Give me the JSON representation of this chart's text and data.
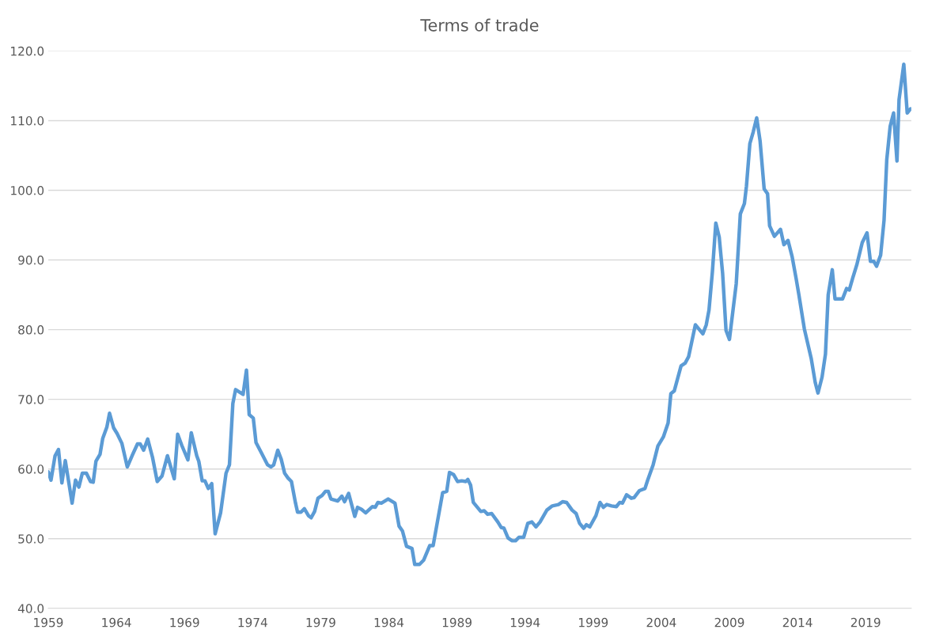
{
  "chart_data": {
    "type": "line",
    "title": "Terms of trade",
    "xlim": [
      1959,
      2022.35
    ],
    "xticks": [
      1959,
      1964,
      1969,
      1974,
      1979,
      1984,
      1989,
      1994,
      1999,
      2004,
      2009,
      2014,
      2019
    ],
    "ylim": [
      40,
      120
    ],
    "yticks": [
      {
        "value": 40,
        "label": "40.0"
      },
      {
        "value": 50,
        "label": "50.0"
      },
      {
        "value": 60,
        "label": "60.0"
      },
      {
        "value": 70,
        "label": "70.0"
      },
      {
        "value": 80,
        "label": "80.0"
      },
      {
        "value": 90,
        "label": "90.0"
      },
      {
        "value": 100,
        "label": "100.0"
      },
      {
        "value": 110,
        "label": "110.0"
      },
      {
        "value": 120,
        "label": "120.0"
      }
    ],
    "grid": "y",
    "legend": false,
    "marker": "none",
    "line_style": "solid",
    "series": [
      {
        "color": "#5b9bd5",
        "x": [
          1959.0,
          1959.2,
          1959.5,
          1959.75,
          1960.0,
          1960.25,
          1960.75,
          1961.0,
          1961.25,
          1961.5,
          1961.8,
          1962.1,
          1962.3,
          1962.5,
          1962.8,
          1963.0,
          1963.3,
          1963.5,
          1963.8,
          1964.05,
          1964.4,
          1964.8,
          1965.2,
          1965.55,
          1965.75,
          1966.0,
          1966.3,
          1966.65,
          1967.0,
          1967.35,
          1967.75,
          1968.25,
          1968.5,
          1968.8,
          1969.25,
          1969.5,
          1969.9,
          1970.05,
          1970.3,
          1970.5,
          1970.75,
          1971.0,
          1971.25,
          1971.65,
          1972.05,
          1972.3,
          1972.55,
          1972.75,
          1973.3,
          1973.55,
          1973.75,
          1974.05,
          1974.25,
          1974.6,
          1975.1,
          1975.35,
          1975.55,
          1975.85,
          1976.1,
          1976.35,
          1976.6,
          1976.85,
          1977.15,
          1977.3,
          1977.55,
          1977.8,
          1978.1,
          1978.3,
          1978.55,
          1978.8,
          1979.1,
          1979.35,
          1979.55,
          1979.75,
          1980.25,
          1980.55,
          1980.75,
          1981.05,
          1981.5,
          1981.7,
          1982.0,
          1982.3,
          1982.8,
          1983.0,
          1983.2,
          1983.45,
          1983.95,
          1984.45,
          1984.75,
          1985.0,
          1985.3,
          1985.7,
          1985.9,
          1986.25,
          1986.55,
          1987.0,
          1987.25,
          1987.95,
          1988.25,
          1988.45,
          1988.75,
          1989.05,
          1989.35,
          1989.65,
          1989.8,
          1990.0,
          1990.2,
          1990.5,
          1990.75,
          1991.0,
          1991.25,
          1991.55,
          1992.0,
          1992.25,
          1992.45,
          1992.75,
          1993.05,
          1993.3,
          1993.55,
          1993.9,
          1994.2,
          1994.5,
          1994.8,
          1995.1,
          1995.6,
          1996.0,
          1996.45,
          1996.75,
          1997.05,
          1997.45,
          1997.75,
          1998.0,
          1998.3,
          1998.5,
          1998.75,
          1999.2,
          1999.5,
          1999.75,
          2000.0,
          2000.35,
          2000.7,
          2000.95,
          2001.15,
          2001.45,
          2001.8,
          2002.0,
          2002.4,
          2002.8,
          2003.0,
          2003.4,
          2003.75,
          2004.15,
          2004.5,
          2004.7,
          2004.95,
          2005.45,
          2005.75,
          2006.0,
          2006.5,
          2007.05,
          2007.3,
          2007.5,
          2007.75,
          2008.0,
          2008.25,
          2008.5,
          2008.75,
          2009.0,
          2009.5,
          2009.8,
          2010.1,
          2010.25,
          2010.5,
          2010.75,
          2011.0,
          2011.25,
          2011.55,
          2011.8,
          2011.95,
          2012.3,
          2012.75,
          2013.0,
          2013.3,
          2013.6,
          2013.9,
          2014.1,
          2014.5,
          2015.0,
          2015.3,
          2015.5,
          2015.8,
          2016.05,
          2016.25,
          2016.55,
          2016.75,
          2017.3,
          2017.6,
          2017.8,
          2018.05,
          2018.35,
          2018.75,
          2019.1,
          2019.35,
          2019.6,
          2019.8,
          2020.1,
          2020.35,
          2020.55,
          2020.8,
          2021.05,
          2021.3,
          2021.45,
          2021.8,
          2022.05,
          2022.3
        ],
        "values": [
          59.6,
          58.4,
          61.9,
          62.8,
          58.0,
          61.2,
          55.1,
          58.4,
          57.4,
          59.4,
          59.4,
          58.2,
          58.1,
          61.1,
          62.1,
          64.4,
          66.0,
          68.0,
          65.9,
          65.1,
          63.7,
          60.3,
          62.1,
          63.6,
          63.6,
          62.7,
          64.3,
          61.7,
          58.2,
          59.0,
          61.9,
          58.6,
          65.0,
          63.4,
          61.3,
          65.2,
          61.9,
          61.1,
          58.3,
          58.3,
          57.2,
          57.9,
          50.7,
          53.7,
          59.4,
          60.6,
          69.4,
          71.4,
          70.7,
          74.2,
          67.8,
          67.3,
          63.8,
          62.5,
          60.6,
          60.3,
          60.6,
          62.7,
          61.4,
          59.4,
          58.7,
          58.2,
          55.1,
          53.8,
          53.8,
          54.3,
          53.3,
          53.0,
          53.9,
          55.8,
          56.2,
          56.8,
          56.8,
          55.7,
          55.4,
          56.1,
          55.3,
          56.5,
          53.2,
          54.5,
          54.2,
          53.7,
          54.6,
          54.5,
          55.2,
          55.1,
          55.7,
          55.1,
          51.8,
          51.1,
          48.9,
          48.6,
          46.3,
          46.3,
          46.9,
          49.0,
          49.0,
          56.6,
          56.8,
          59.5,
          59.2,
          58.2,
          58.3,
          58.2,
          58.5,
          57.7,
          55.2,
          54.5,
          53.9,
          54.0,
          53.5,
          53.6,
          52.4,
          51.6,
          51.5,
          50.1,
          49.7,
          49.7,
          50.2,
          50.2,
          52.2,
          52.4,
          51.7,
          52.4,
          54.1,
          54.7,
          54.9,
          55.3,
          55.2,
          54.1,
          53.6,
          52.2,
          51.5,
          52.0,
          51.7,
          53.3,
          55.2,
          54.5,
          54.9,
          54.7,
          54.6,
          55.2,
          55.1,
          56.3,
          55.8,
          55.9,
          56.9,
          57.2,
          58.4,
          60.6,
          63.3,
          64.6,
          66.6,
          70.8,
          71.2,
          74.8,
          75.2,
          76.1,
          80.7,
          79.4,
          80.7,
          82.8,
          88.3,
          95.3,
          93.3,
          88.1,
          79.9,
          78.6,
          86.6,
          96.6,
          98.1,
          100.6,
          106.7,
          108.4,
          110.4,
          107.1,
          100.2,
          99.5,
          94.9,
          93.4,
          94.4,
          92.2,
          92.8,
          90.5,
          87.3,
          85.0,
          80.1,
          75.9,
          72.4,
          70.9,
          73.2,
          76.5,
          85.0,
          88.6,
          84.4,
          84.4,
          85.9,
          85.7,
          87.4,
          89.3,
          92.5,
          93.9,
          89.8,
          89.8,
          89.1,
          90.7,
          95.7,
          104.4,
          109.2,
          111.1,
          104.2,
          113.0,
          118.1,
          111.1,
          111.7
        ]
      }
    ]
  }
}
